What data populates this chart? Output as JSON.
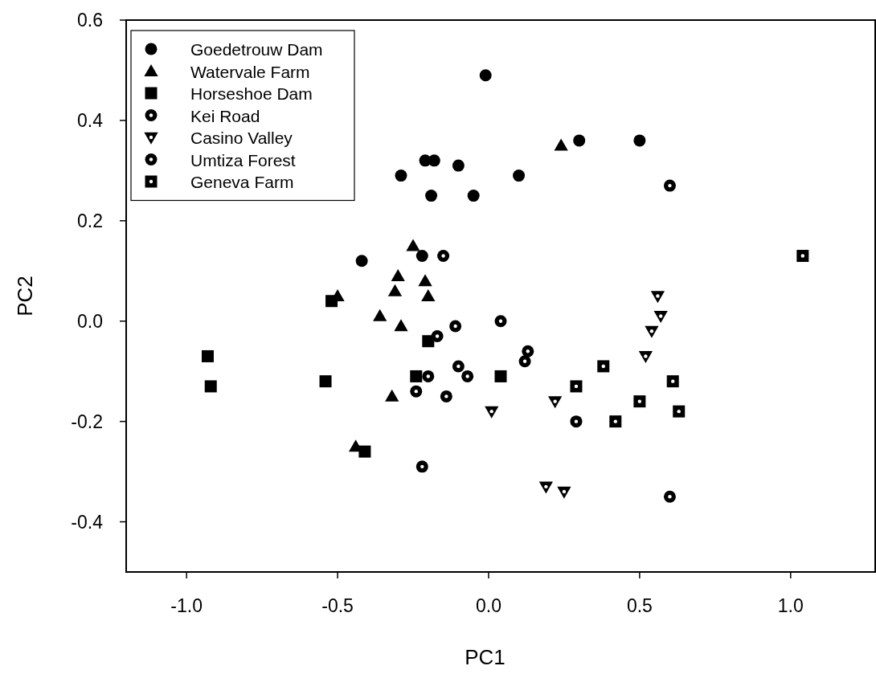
{
  "chart_data": {
    "type": "scatter",
    "xlabel": "PC1",
    "ylabel": "PC2",
    "xlim": [
      -1.2,
      1.28
    ],
    "ylim": [
      -0.5,
      0.6
    ],
    "xticks": [
      {
        "value": -1,
        "label": "-1.0"
      },
      -0.5,
      {
        "value": 0,
        "label": "0.0"
      },
      0.5,
      {
        "value": 1,
        "label": "1.0"
      }
    ],
    "yticks": [
      {
        "value": -0.4,
        "label": "-0.4"
      },
      {
        "value": -0.2,
        "label": "-0.2"
      },
      {
        "value": 0,
        "label": "0.0"
      },
      {
        "value": 0.2,
        "label": "0.2"
      },
      {
        "value": 0.4,
        "label": "0.4"
      },
      {
        "value": 0.6,
        "label": "0.6"
      }
    ],
    "grid": false,
    "legend": "top left",
    "series": [
      {
        "name": "Goedetrouw Dam",
        "color": "#000000",
        "marker": "circle",
        "x": [
          -0.01,
          -0.21,
          -0.18,
          -0.1,
          -0.29,
          -0.19,
          -0.05,
          0.1,
          0.3,
          0.5,
          -0.42,
          -0.22
        ],
        "values": [
          0.49,
          0.32,
          0.32,
          0.31,
          0.29,
          0.25,
          0.25,
          0.29,
          0.36,
          0.36,
          0.12,
          0.13
        ]
      },
      {
        "name": "Watervale Farm",
        "color": "#000000",
        "marker": "triangle",
        "x": [
          0.24,
          -0.25,
          -0.3,
          -0.31,
          -0.21,
          -0.2,
          -0.36,
          -0.29,
          -0.32,
          -0.44,
          -0.5
        ],
        "values": [
          0.35,
          0.15,
          0.09,
          0.06,
          0.08,
          0.05,
          0.01,
          -0.01,
          -0.15,
          -0.25,
          0.05
        ]
      },
      {
        "name": "Horseshoe Dam",
        "color": "#000000",
        "marker": "square",
        "x": [
          -0.52,
          -0.93,
          -0.92,
          -0.54,
          -0.2,
          -0.24,
          0.04,
          -0.41
        ],
        "values": [
          0.04,
          -0.07,
          -0.13,
          -0.12,
          -0.04,
          -0.11,
          -0.11,
          -0.26
        ]
      },
      {
        "name": "Kei Road",
        "color": "#000000",
        "marker": "circle-dot",
        "x": [
          -0.15,
          -0.17,
          -0.11,
          0.04,
          -0.2,
          -0.24,
          -0.22
        ],
        "values": [
          0.13,
          -0.03,
          -0.01,
          0.0,
          -0.11,
          -0.14,
          -0.29
        ]
      },
      {
        "name": "Casino Valley",
        "color": "#000000",
        "marker": "triangle-down-dot",
        "x": [
          0.56,
          0.57,
          0.54,
          0.52,
          0.22,
          0.01,
          0.19,
          0.25
        ],
        "values": [
          0.05,
          0.01,
          -0.02,
          -0.07,
          -0.16,
          -0.18,
          -0.33,
          -0.34
        ]
      },
      {
        "name": "Umtiza Forest",
        "color": "#000000",
        "marker": "circle-dot",
        "x": [
          -0.1,
          -0.07,
          -0.14,
          0.13,
          0.12,
          0.29,
          0.6,
          0.6
        ],
        "values": [
          -0.09,
          -0.11,
          -0.15,
          -0.06,
          -0.08,
          -0.2,
          -0.35,
          0.27
        ]
      },
      {
        "name": "Geneva Farm",
        "color": "#000000",
        "marker": "square-dot",
        "x": [
          1.04,
          0.38,
          0.29,
          0.61,
          0.5,
          0.42,
          0.63
        ],
        "values": [
          0.13,
          -0.09,
          -0.13,
          -0.12,
          -0.16,
          -0.2,
          -0.18
        ]
      }
    ]
  }
}
